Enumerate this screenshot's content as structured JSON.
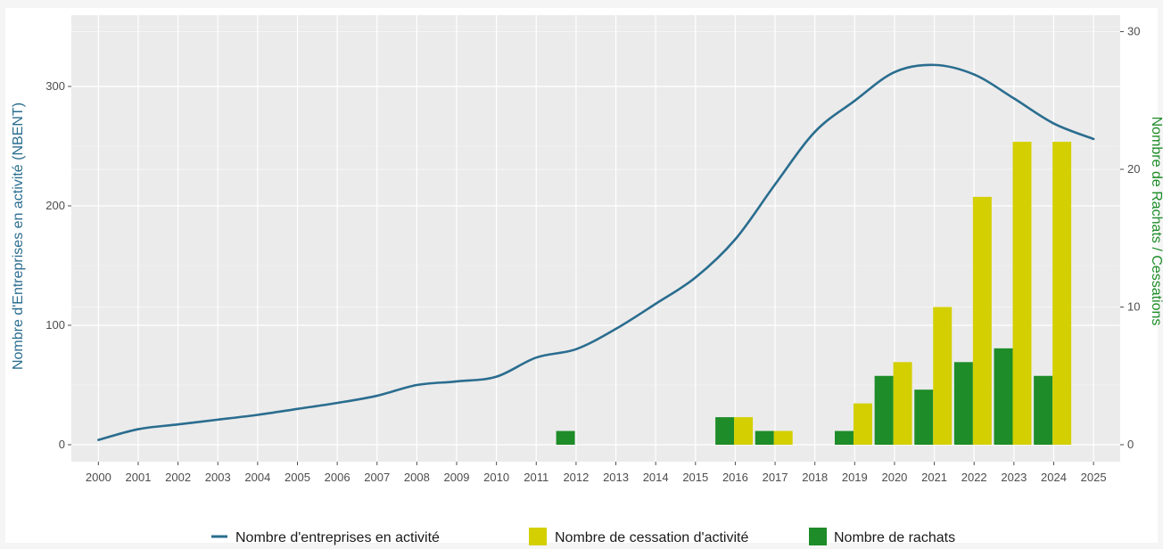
{
  "chart_data": {
    "type": "bar",
    "title": "",
    "ylabel_left": "Nombre d'Entreprises en activité (NBENT)",
    "ylabel_right": "Nombre de Rachats / Cessations",
    "xlabel": "",
    "categories": [
      "2000",
      "2001",
      "2002",
      "2003",
      "2004",
      "2005",
      "2006",
      "2007",
      "2008",
      "2009",
      "2010",
      "2011",
      "2012",
      "2013",
      "2014",
      "2015",
      "2016",
      "2017",
      "2018",
      "2019",
      "2020",
      "2021",
      "2022",
      "2023",
      "2024",
      "2025"
    ],
    "ylim_left": [
      0,
      350
    ],
    "ylim_right": [
      0,
      30
    ],
    "yticks_left": [
      0,
      100,
      200,
      300
    ],
    "yticks_right": [
      0,
      10,
      20,
      30
    ],
    "grid": true,
    "legend_position": "bottom",
    "series": [
      {
        "name": "Nombre d'entreprises en activité",
        "type": "line",
        "axis": "left",
        "color": "#2a6d8f",
        "x": [
          "2000",
          "2001",
          "2002",
          "2003",
          "2004",
          "2005",
          "2006",
          "2007",
          "2008",
          "2009",
          "2010",
          "2011",
          "2012",
          "2013",
          "2014",
          "2015",
          "2016",
          "2017",
          "2018",
          "2019",
          "2020",
          "2021",
          "2022",
          "2023",
          "2024",
          "2025"
        ],
        "values": [
          4,
          13,
          17,
          21,
          25,
          30,
          35,
          41,
          50,
          53,
          57,
          73,
          80,
          97,
          118,
          140,
          172,
          218,
          262,
          288,
          312,
          318,
          310,
          290,
          269,
          256
        ]
      },
      {
        "name": "Nombre de cessation d'activité",
        "type": "bar",
        "axis": "right",
        "color": "#d4cf00",
        "x": [
          "2016",
          "2017",
          "2019",
          "2020",
          "2021",
          "2022",
          "2023",
          "2024"
        ],
        "values": [
          2,
          1,
          3,
          6,
          10,
          18,
          22,
          22
        ]
      },
      {
        "name": "Nombre de rachats",
        "type": "bar",
        "axis": "right",
        "color": "#1e8c28",
        "x": [
          "2012",
          "2016",
          "2017",
          "2019",
          "2020",
          "2021",
          "2022",
          "2023",
          "2024"
        ],
        "values": [
          1,
          2,
          1,
          1,
          5,
          4,
          6,
          7,
          5
        ]
      }
    ]
  },
  "colors": {
    "panel_background": "#ebebeb",
    "grid_major": "#ffffff",
    "left_axis_title": "#2a6d8f",
    "right_axis_title": "#1e8c28"
  }
}
